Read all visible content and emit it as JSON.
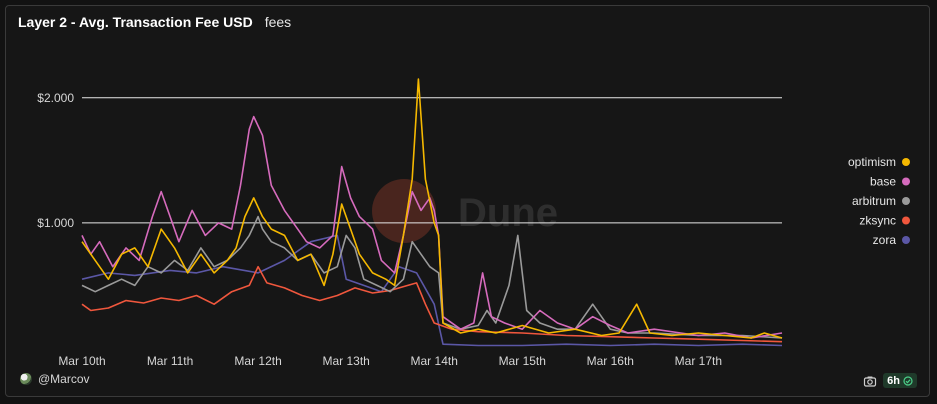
{
  "header": {
    "title": "Layer 2 - Avg. Transaction Fee USD",
    "subtitle": "fees"
  },
  "watermark": "Dune",
  "footer": {
    "author": "@Marcov",
    "refresh_label": "6h"
  },
  "icons": {
    "camera": "camera-icon",
    "check": "check-circle-icon",
    "avatar": "user-avatar"
  },
  "chart_data": {
    "type": "line",
    "title": "Layer 2 - Avg. Transaction Fee USD",
    "xlabel": "",
    "ylabel": "",
    "x_range": [
      0,
      7.95
    ],
    "y_range": [
      0,
      2.35
    ],
    "y_ticks": [
      1,
      2
    ],
    "y_tick_labels": [
      "$1.000",
      "$2.000"
    ],
    "x_ticks": [
      0,
      1,
      2,
      3,
      4,
      5,
      6,
      7
    ],
    "x_tick_labels": [
      "Mar 10th",
      "Mar 11th",
      "Mar 12th",
      "Mar 13th",
      "Mar 14th",
      "Mar 15th",
      "Mar 16th",
      "Mar 17th"
    ],
    "grid": "horizontal",
    "legend_position": "right",
    "series": [
      {
        "name": "zora",
        "color": "#5b57a6",
        "points": [
          [
            0,
            0.55
          ],
          [
            0.3,
            0.6
          ],
          [
            0.6,
            0.58
          ],
          [
            1,
            0.62
          ],
          [
            1.3,
            0.6
          ],
          [
            1.6,
            0.65
          ],
          [
            2,
            0.6
          ],
          [
            2.3,
            0.7
          ],
          [
            2.6,
            0.85
          ],
          [
            2.9,
            0.9
          ],
          [
            3.0,
            0.55
          ],
          [
            3.2,
            0.5
          ],
          [
            3.4,
            0.45
          ],
          [
            3.6,
            0.65
          ],
          [
            3.8,
            0.6
          ],
          [
            4.0,
            0.35
          ],
          [
            4.1,
            0.03
          ],
          [
            4.5,
            0.02
          ],
          [
            5,
            0.02
          ],
          [
            5.5,
            0.03
          ],
          [
            6,
            0.02
          ],
          [
            6.5,
            0.03
          ],
          [
            7,
            0.02
          ],
          [
            7.5,
            0.03
          ],
          [
            7.95,
            0.02
          ]
        ]
      },
      {
        "name": "zksync",
        "color": "#f0573d",
        "points": [
          [
            0,
            0.35
          ],
          [
            0.1,
            0.3
          ],
          [
            0.3,
            0.32
          ],
          [
            0.5,
            0.38
          ],
          [
            0.7,
            0.36
          ],
          [
            0.9,
            0.4
          ],
          [
            1.1,
            0.38
          ],
          [
            1.3,
            0.42
          ],
          [
            1.5,
            0.35
          ],
          [
            1.7,
            0.45
          ],
          [
            1.9,
            0.5
          ],
          [
            2.0,
            0.65
          ],
          [
            2.1,
            0.52
          ],
          [
            2.3,
            0.48
          ],
          [
            2.5,
            0.42
          ],
          [
            2.7,
            0.38
          ],
          [
            2.9,
            0.42
          ],
          [
            3.1,
            0.48
          ],
          [
            3.3,
            0.44
          ],
          [
            3.5,
            0.46
          ],
          [
            3.7,
            0.5
          ],
          [
            3.8,
            0.52
          ],
          [
            3.9,
            0.35
          ],
          [
            4.0,
            0.2
          ],
          [
            4.2,
            0.15
          ],
          [
            4.5,
            0.13
          ],
          [
            5,
            0.12
          ],
          [
            5.5,
            0.1
          ],
          [
            6,
            0.09
          ],
          [
            6.5,
            0.08
          ],
          [
            7,
            0.07
          ],
          [
            7.5,
            0.06
          ],
          [
            7.95,
            0.05
          ]
        ]
      },
      {
        "name": "arbitrum",
        "color": "#9a9a9a",
        "points": [
          [
            0,
            0.5
          ],
          [
            0.15,
            0.45
          ],
          [
            0.3,
            0.5
          ],
          [
            0.45,
            0.55
          ],
          [
            0.6,
            0.5
          ],
          [
            0.75,
            0.65
          ],
          [
            0.9,
            0.6
          ],
          [
            1.05,
            0.7
          ],
          [
            1.2,
            0.62
          ],
          [
            1.35,
            0.8
          ],
          [
            1.5,
            0.65
          ],
          [
            1.65,
            0.7
          ],
          [
            1.8,
            0.8
          ],
          [
            1.9,
            0.9
          ],
          [
            2.0,
            1.05
          ],
          [
            2.05,
            0.95
          ],
          [
            2.15,
            0.85
          ],
          [
            2.3,
            0.8
          ],
          [
            2.45,
            0.7
          ],
          [
            2.6,
            0.75
          ],
          [
            2.75,
            0.6
          ],
          [
            2.9,
            0.65
          ],
          [
            3.0,
            0.9
          ],
          [
            3.1,
            0.8
          ],
          [
            3.2,
            0.55
          ],
          [
            3.35,
            0.5
          ],
          [
            3.5,
            0.45
          ],
          [
            3.65,
            0.55
          ],
          [
            3.75,
            0.85
          ],
          [
            3.85,
            0.75
          ],
          [
            3.95,
            0.65
          ],
          [
            4.05,
            0.6
          ],
          [
            4.1,
            0.2
          ],
          [
            4.3,
            0.15
          ],
          [
            4.5,
            0.18
          ],
          [
            4.6,
            0.3
          ],
          [
            4.7,
            0.2
          ],
          [
            4.85,
            0.5
          ],
          [
            4.95,
            0.9
          ],
          [
            5.05,
            0.3
          ],
          [
            5.2,
            0.2
          ],
          [
            5.4,
            0.15
          ],
          [
            5.6,
            0.15
          ],
          [
            5.8,
            0.35
          ],
          [
            6.0,
            0.15
          ],
          [
            6.2,
            0.12
          ],
          [
            6.5,
            0.12
          ],
          [
            7.0,
            0.1
          ],
          [
            7.5,
            0.1
          ],
          [
            7.95,
            0.08
          ]
        ]
      },
      {
        "name": "base",
        "color": "#d66bbd",
        "points": [
          [
            0,
            0.9
          ],
          [
            0.1,
            0.75
          ],
          [
            0.2,
            0.85
          ],
          [
            0.35,
            0.65
          ],
          [
            0.5,
            0.8
          ],
          [
            0.65,
            0.7
          ],
          [
            0.8,
            1.05
          ],
          [
            0.9,
            1.25
          ],
          [
            1.0,
            1.05
          ],
          [
            1.1,
            0.85
          ],
          [
            1.25,
            1.1
          ],
          [
            1.4,
            0.9
          ],
          [
            1.55,
            1.0
          ],
          [
            1.7,
            0.95
          ],
          [
            1.8,
            1.3
          ],
          [
            1.9,
            1.75
          ],
          [
            1.95,
            1.85
          ],
          [
            2.05,
            1.7
          ],
          [
            2.15,
            1.3
          ],
          [
            2.3,
            1.1
          ],
          [
            2.45,
            0.95
          ],
          [
            2.55,
            0.85
          ],
          [
            2.7,
            0.8
          ],
          [
            2.85,
            0.9
          ],
          [
            2.95,
            1.45
          ],
          [
            3.05,
            1.2
          ],
          [
            3.15,
            1.05
          ],
          [
            3.3,
            0.95
          ],
          [
            3.4,
            0.7
          ],
          [
            3.55,
            0.6
          ],
          [
            3.65,
            0.9
          ],
          [
            3.75,
            1.25
          ],
          [
            3.85,
            1.1
          ],
          [
            3.95,
            1.2
          ],
          [
            4.0,
            1.1
          ],
          [
            4.05,
            0.9
          ],
          [
            4.1,
            0.25
          ],
          [
            4.3,
            0.15
          ],
          [
            4.45,
            0.2
          ],
          [
            4.55,
            0.6
          ],
          [
            4.65,
            0.25
          ],
          [
            4.8,
            0.2
          ],
          [
            5.0,
            0.15
          ],
          [
            5.2,
            0.3
          ],
          [
            5.4,
            0.2
          ],
          [
            5.6,
            0.15
          ],
          [
            5.8,
            0.25
          ],
          [
            6.0,
            0.18
          ],
          [
            6.2,
            0.12
          ],
          [
            6.5,
            0.15
          ],
          [
            6.8,
            0.12
          ],
          [
            7.0,
            0.1
          ],
          [
            7.3,
            0.12
          ],
          [
            7.6,
            0.08
          ],
          [
            7.95,
            0.12
          ]
        ]
      },
      {
        "name": "optimism",
        "color": "#f5b800",
        "points": [
          [
            0,
            0.85
          ],
          [
            0.15,
            0.7
          ],
          [
            0.3,
            0.55
          ],
          [
            0.45,
            0.75
          ],
          [
            0.6,
            0.8
          ],
          [
            0.75,
            0.65
          ],
          [
            0.9,
            0.95
          ],
          [
            1.05,
            0.8
          ],
          [
            1.2,
            0.6
          ],
          [
            1.35,
            0.75
          ],
          [
            1.5,
            0.6
          ],
          [
            1.65,
            0.7
          ],
          [
            1.75,
            0.8
          ],
          [
            1.85,
            1.05
          ],
          [
            1.95,
            1.2
          ],
          [
            2.05,
            1.05
          ],
          [
            2.15,
            0.95
          ],
          [
            2.3,
            0.9
          ],
          [
            2.45,
            0.7
          ],
          [
            2.6,
            0.75
          ],
          [
            2.75,
            0.5
          ],
          [
            2.85,
            0.75
          ],
          [
            2.95,
            1.15
          ],
          [
            3.05,
            0.95
          ],
          [
            3.15,
            0.75
          ],
          [
            3.3,
            0.6
          ],
          [
            3.45,
            0.55
          ],
          [
            3.55,
            0.5
          ],
          [
            3.65,
            0.9
          ],
          [
            3.75,
            1.35
          ],
          [
            3.82,
            2.15
          ],
          [
            3.9,
            1.35
          ],
          [
            4.0,
            1.0
          ],
          [
            4.05,
            0.9
          ],
          [
            4.1,
            0.2
          ],
          [
            4.3,
            0.12
          ],
          [
            4.5,
            0.15
          ],
          [
            4.7,
            0.12
          ],
          [
            5.0,
            0.18
          ],
          [
            5.3,
            0.12
          ],
          [
            5.6,
            0.15
          ],
          [
            5.9,
            0.1
          ],
          [
            6.1,
            0.12
          ],
          [
            6.3,
            0.35
          ],
          [
            6.45,
            0.12
          ],
          [
            6.7,
            0.1
          ],
          [
            7.0,
            0.12
          ],
          [
            7.3,
            0.1
          ],
          [
            7.6,
            0.08
          ],
          [
            7.75,
            0.12
          ],
          [
            7.95,
            0.08
          ]
        ]
      }
    ],
    "legend_order": [
      "optimism",
      "base",
      "arbitrum",
      "zksync",
      "zora"
    ]
  }
}
